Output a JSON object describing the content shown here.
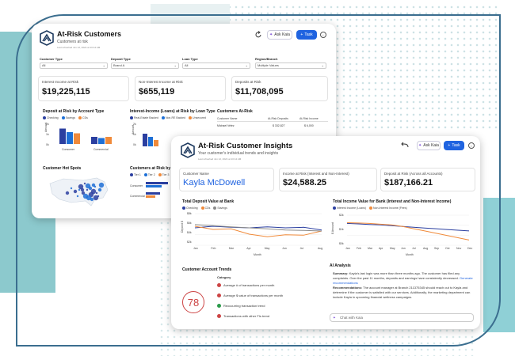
{
  "w1": {
    "title": "At-Risk Customers",
    "subtitle": "Customers at risk",
    "refreshed": "Last refreshed Jun 12, 2024 at 10:14 AM",
    "ask_kaia": "Ask Kaia",
    "task": "Task",
    "filters": [
      {
        "label": "Customer Type",
        "value": "All"
      },
      {
        "label": "Deposit Type",
        "value": "Brand A"
      },
      {
        "label": "Loan Type",
        "value": "All"
      },
      {
        "label": "Region/Branch",
        "value": "Multiple Values"
      }
    ],
    "kpis": [
      {
        "label": "Interest Income at Risk",
        "value": "$19,225,115"
      },
      {
        "label": "Non-Interest Income at Risk",
        "value": "$655,119"
      },
      {
        "label": "Deposits at Risk",
        "value": "$11,708,095"
      }
    ],
    "deposit_chart": {
      "title": "Deposit at Risk by Account Type",
      "legend": [
        "Checking",
        "Savings",
        "CDs"
      ],
      "ylabel": "Amount",
      "yticks": [
        "2k",
        "1k",
        "0k"
      ],
      "categories": [
        "Consumer",
        "Commercial"
      ]
    },
    "interest_chart": {
      "title": "Interest-Income (Loans) at Risk by Loan Type",
      "legend": [
        "Real-Estate Backed",
        "Non-RE Backed",
        "Unsecured"
      ],
      "ylabel": "Amount",
      "yticks": [
        "2k",
        "1k",
        "0k"
      ]
    },
    "customers_table": {
      "title": "Customers At-Risk",
      "headers": [
        "Customer Name",
        "At-Risk Deposits",
        "At-Risk Income"
      ],
      "rows": [
        [
          "Michael Velez",
          "$ 332,827",
          "$ 6,000"
        ]
      ]
    },
    "hotspots_title": "Customer Hot Spots",
    "by_customer": {
      "title": "Customers at Risk by Cu",
      "legend": [
        "Tier 1",
        "Tier 2",
        "Tier 3"
      ],
      "categories": [
        "Consumer",
        "Commercial"
      ]
    }
  },
  "w2": {
    "title": "At-Risk Customer Insights",
    "subtitle": "Your customer's individual trends and insights",
    "refreshed": "Last refreshed Jun 12, 2024 at 10:14 AM",
    "ask_kaia": "Ask Kaia",
    "task": "Task",
    "kpis": [
      {
        "label": "Customer Name",
        "value": "Kayla McDowell"
      },
      {
        "label": "Income at Risk (Interest and Non-Interest)",
        "value": "$24,588.25"
      },
      {
        "label": "Deposit at Risk (Across all Accounts)",
        "value": "$187,166.21"
      }
    ],
    "deposit_chart": {
      "title": "Total Deposit Value at Bank",
      "legend": [
        "Checking",
        "CDs",
        "Savings"
      ],
      "ylabel": "Deposit $",
      "xlabel": "Month",
      "months": [
        "Jan",
        "Feb",
        "Mar",
        "Apr",
        "May",
        "Jun",
        "Jul",
        "Aug"
      ],
      "yticks": [
        "$8k",
        "$6k",
        "$4k",
        "$2k"
      ]
    },
    "income_chart": {
      "title": "Total Income Value for Bank (Interest and Non-Interest Income)",
      "legend": [
        "Interest Income (Loans)",
        "Non-Interest Income (Fees)"
      ],
      "ylabel": "$ Amount",
      "xlabel": "Month",
      "months": [
        "Jan",
        "Feb",
        "Mar",
        "Apr",
        "May",
        "Jun",
        "Jul",
        "Aug",
        "Sep",
        "Oct",
        "Nov",
        "Dec"
      ],
      "yticks": [
        "$2k",
        "$1k",
        "$0k"
      ]
    },
    "trends": {
      "title": "Customer Account Trends",
      "score": "78",
      "category_header": "Category",
      "items": [
        "Average # of transactions per month",
        "Average $ value of transactions per month",
        "Reoccurring transaction trend",
        "Transactions with other FIs trend"
      ]
    },
    "ai": {
      "title": "AI Analysis",
      "summary_label": "Summary:",
      "summary": "Kayla's last login was more than three months ago. The customer has filed any complaints. Over the past 11 months, deposits and earnings have consistently decreased.",
      "link": "Generate recommendations",
      "rec_label": "Recommendations:",
      "rec": "The account manager at Branch 211375345 should reach out to Kayla and determine if the customer is satisfied with our services. Additionally, the marketing department can include Kayla in upcoming financial wellness campaigns.",
      "chat_placeholder": "Chat with Kaia"
    }
  },
  "chart_data": [
    {
      "type": "line",
      "title": "Total Deposit Value at Bank",
      "xlabel": "Month",
      "ylabel": "Deposit $",
      "x": [
        "Jan",
        "Feb",
        "Mar",
        "Apr",
        "May",
        "Jun",
        "Jul",
        "Aug"
      ],
      "series": [
        {
          "name": "Checking",
          "values": [
            5.3,
            5.6,
            5.4,
            5.3,
            5.5,
            5.3,
            5.4,
            4.9
          ]
        },
        {
          "name": "CDs",
          "values": [
            5.6,
            5.0,
            5.1,
            4.1,
            3.6,
            4.0,
            3.9,
            4.7
          ]
        },
        {
          "name": "Savings",
          "values": [
            5.9,
            5.7,
            5.5,
            5.3,
            5.1,
            4.9,
            4.8,
            4.7
          ]
        }
      ],
      "ylim": [
        2,
        8
      ],
      "colors": [
        "#2b3fa0",
        "#f08a3a",
        "#8a8a8a"
      ]
    },
    {
      "type": "line",
      "title": "Total Income Value for Bank (Interest and Non-Interest Income)",
      "xlabel": "Month",
      "ylabel": "$ Amount",
      "x": [
        "Jan",
        "Feb",
        "Mar",
        "Apr",
        "May",
        "Jun",
        "Jul",
        "Aug",
        "Sep",
        "Oct",
        "Nov",
        "Dec"
      ],
      "series": [
        {
          "name": "Interest Income (Loans)",
          "values": [
            1.45,
            1.42,
            1.38,
            1.35,
            1.3,
            1.25,
            1.2,
            1.15,
            1.1,
            1.05,
            1.0,
            0.95
          ]
        },
        {
          "name": "Non-Interest Income (Fees)",
          "values": [
            1.5,
            1.48,
            1.45,
            1.4,
            1.35,
            1.25,
            1.1,
            0.95,
            0.8,
            0.65,
            0.5,
            0.35
          ]
        }
      ],
      "ylim": [
        0,
        2
      ],
      "colors": [
        "#2b3fa0",
        "#f08a3a"
      ]
    },
    {
      "type": "bar",
      "title": "Deposit at Risk by Account Type",
      "ylabel": "Amount",
      "categories": [
        "Consumer",
        "Commercial"
      ],
      "series": [
        {
          "name": "Checking",
          "values": [
            1.3,
            0.6
          ]
        },
        {
          "name": "Savings",
          "values": [
            1.0,
            0.5
          ]
        },
        {
          "name": "CDs",
          "values": [
            0.9,
            0.6
          ]
        }
      ],
      "ylim": [
        0,
        2
      ],
      "colors": [
        "#2b3fa0",
        "#1d6fd6",
        "#f08a3a"
      ]
    }
  ]
}
